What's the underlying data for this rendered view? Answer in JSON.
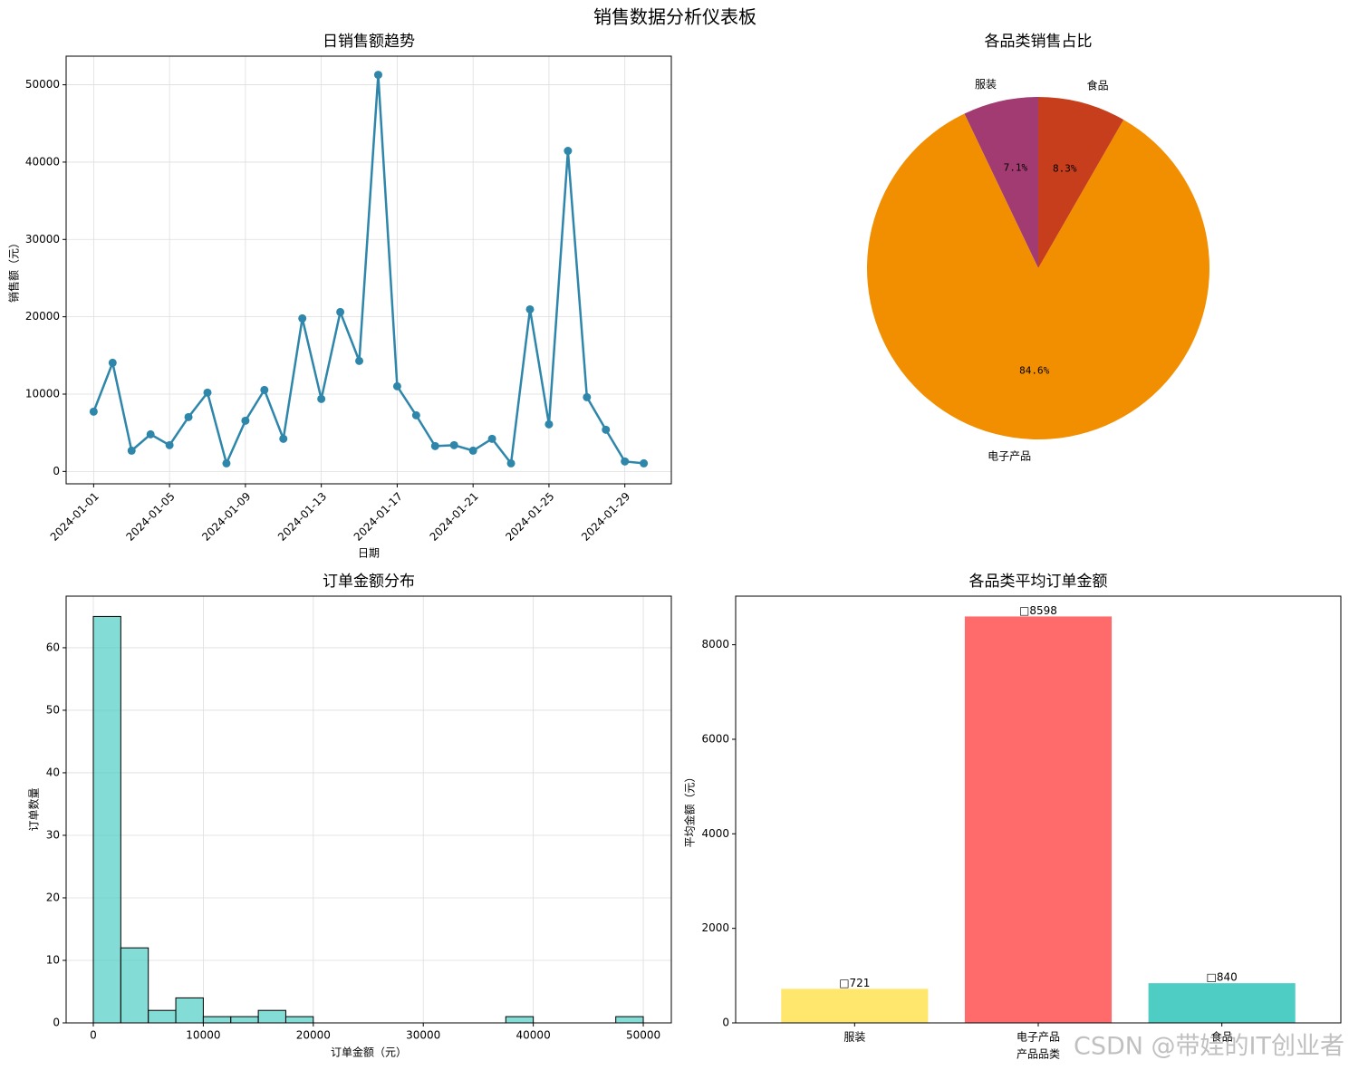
{
  "title": "销售数据分析仪表板",
  "watermark": "CSDN @带娃的IT创业者",
  "chart_data": [
    {
      "type": "line",
      "title": "日销售额趋势",
      "x_label": "日期",
      "y_label": "销售额（元）",
      "color": "#2e86ab",
      "grid": true,
      "x": [
        "2024-01-01",
        "2024-01-02",
        "2024-01-03",
        "2024-01-04",
        "2024-01-05",
        "2024-01-06",
        "2024-01-07",
        "2024-01-08",
        "2024-01-09",
        "2024-01-10",
        "2024-01-11",
        "2024-01-12",
        "2024-01-13",
        "2024-01-14",
        "2024-01-15",
        "2024-01-16",
        "2024-01-17",
        "2024-01-18",
        "2024-01-19",
        "2024-01-20",
        "2024-01-21",
        "2024-01-22",
        "2024-01-23",
        "2024-01-24",
        "2024-01-25",
        "2024-01-26",
        "2024-01-27",
        "2024-01-28",
        "2024-01-29",
        "2024-01-30"
      ],
      "values": [
        7730,
        14050,
        2690,
        4800,
        3400,
        7030,
        10190,
        1050,
        6560,
        10540,
        4220,
        19790,
        9370,
        20610,
        14290,
        51290,
        11010,
        7260,
        3280,
        3400,
        2690,
        4220,
        1050,
        20960,
        6090,
        41450,
        9600,
        5390,
        1290,
        1050
      ],
      "xlim": [
        "2023-12-30T13:12",
        "2024-01-31T10:48"
      ],
      "xticks": [
        "2024-01-01",
        "2024-01-05",
        "2024-01-09",
        "2024-01-13",
        "2024-01-17",
        "2024-01-21",
        "2024-01-25",
        "2024-01-29"
      ],
      "ylim": [
        -1600,
        53700
      ],
      "yticks": [
        0,
        10000,
        20000,
        30000,
        40000,
        50000
      ]
    },
    {
      "type": "pie",
      "title": "各品类销售占比",
      "categories": [
        "服装",
        "电子产品",
        "食品"
      ],
      "values": [
        7.1,
        84.6,
        8.3
      ],
      "value_labels": [
        "7.1%",
        "84.6%",
        "8.3%"
      ],
      "colors": [
        "#a23b72",
        "#f18f01",
        "#c73e1d"
      ],
      "start_angle": 90
    },
    {
      "type": "histogram",
      "title": "订单金额分布",
      "x_label": "订单金额（元）",
      "y_label": "订单数量",
      "color": "#4ecdc4",
      "grid": true,
      "bins": [
        0,
        2500,
        5000,
        7500,
        10000,
        12500,
        15000,
        17500,
        20000,
        22500,
        25000,
        27500,
        30000,
        32500,
        35000,
        37500,
        40000,
        42500,
        45000,
        47500,
        50000
      ],
      "counts": [
        65,
        12,
        2,
        4,
        1,
        1,
        2,
        1,
        0,
        0,
        0,
        0,
        0,
        0,
        0,
        1,
        0,
        0,
        0,
        1
      ],
      "xlim": [
        -2470,
        52550
      ],
      "xticks": [
        0,
        10000,
        20000,
        30000,
        40000,
        50000
      ],
      "ylim": [
        0,
        68.25
      ],
      "yticks": [
        0,
        10,
        20,
        30,
        40,
        50,
        60
      ]
    },
    {
      "type": "bar",
      "title": "各品类平均订单金额",
      "x_label": "产品品类",
      "y_label": "平均金额（元）",
      "grid": false,
      "categories": [
        "服装",
        "电子产品",
        "食品"
      ],
      "values": [
        721,
        8598,
        840
      ],
      "value_labels": [
        "□721",
        "□8598",
        "□840"
      ],
      "colors": [
        "#ffe66d",
        "#ff6b6b",
        "#4ecdc4"
      ],
      "ylim": [
        0,
        9028
      ],
      "yticks": [
        0,
        2000,
        4000,
        6000,
        8000
      ]
    }
  ]
}
